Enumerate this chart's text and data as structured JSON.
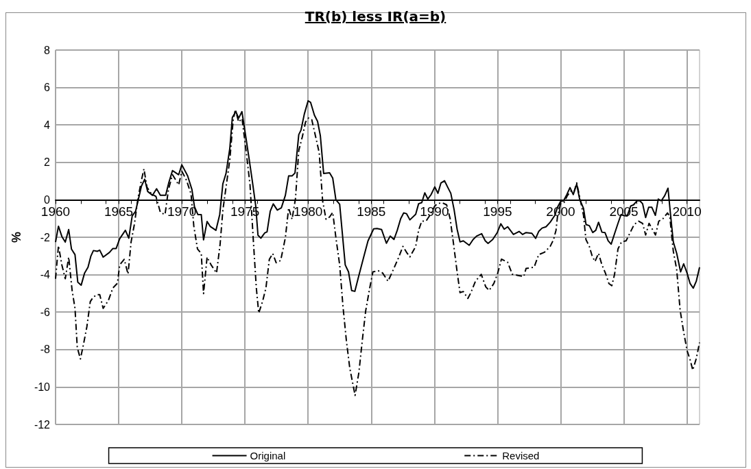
{
  "chart_data": {
    "type": "line",
    "title": "TR(b) less IR(a=b)",
    "ylabel": "%",
    "xlim": [
      1960,
      2011
    ],
    "xticks": [
      1960,
      1965,
      1970,
      1975,
      1980,
      1985,
      1990,
      1995,
      2000,
      2005,
      2010
    ],
    "ylim": [
      -12,
      8
    ],
    "yticks": [
      -12,
      -10,
      -8,
      -6,
      -4,
      -2,
      0,
      2,
      4,
      6,
      8
    ],
    "grid": true,
    "legend": "bottom",
    "marker": "none",
    "series": [
      {
        "name": "Original",
        "color": "#000000",
        "line_style": "solid",
        "x": [
          1960.0,
          1960.23,
          1960.5,
          1960.77,
          1961.04,
          1961.26,
          1961.54,
          1961.76,
          1962.03,
          1962.3,
          1962.57,
          1962.8,
          1963.0,
          1963.3,
          1963.5,
          1963.77,
          1964.27,
          1964.54,
          1964.8,
          1965.08,
          1965.53,
          1965.8,
          1966.07,
          1966.34,
          1966.8,
          1967.06,
          1967.29,
          1967.68,
          1968.0,
          1968.3,
          1968.72,
          1968.97,
          1969.26,
          1969.75,
          1970.0,
          1970.46,
          1970.8,
          1971.0,
          1971.27,
          1971.54,
          1971.72,
          1972.0,
          1972.26,
          1972.7,
          1973.0,
          1973.25,
          1973.5,
          1973.8,
          1974.0,
          1974.28,
          1974.5,
          1974.76,
          1975.04,
          1975.3,
          1975.6,
          1975.85,
          1976.03,
          1976.26,
          1976.57,
          1976.75,
          1977.0,
          1977.24,
          1977.56,
          1977.88,
          1978.2,
          1978.46,
          1978.73,
          1978.96,
          1979.26,
          1979.44,
          1979.7,
          1980.0,
          1980.2,
          1980.5,
          1980.75,
          1980.97,
          1981.23,
          1981.7,
          1981.95,
          1982.2,
          1982.5,
          1982.94,
          1983.2,
          1983.45,
          1983.7,
          1984.0,
          1984.38,
          1984.74,
          1985.19,
          1985.46,
          1985.82,
          1986.2,
          1986.5,
          1986.8,
          1987.06,
          1987.33,
          1987.57,
          1987.79,
          1988.06,
          1988.52,
          1988.75,
          1989.0,
          1989.24,
          1989.48,
          1989.74,
          1990.03,
          1990.28,
          1990.52,
          1990.8,
          1991.07,
          1991.3,
          1991.56,
          1991.8,
          1992.03,
          1992.29,
          1992.76,
          1993.07,
          1993.34,
          1993.74,
          1994.03,
          1994.25,
          1994.62,
          1994.98,
          1995.26,
          1995.53,
          1995.8,
          1996.26,
          1996.71,
          1996.99,
          1997.26,
          1997.72,
          1998.02,
          1998.26,
          1998.53,
          1998.84,
          1999.17,
          1999.54,
          1999.75,
          1999.99,
          2000.23,
          2000.49,
          2000.74,
          2001.0,
          2001.27,
          2001.5,
          2001.81,
          2002.01,
          2002.27,
          2002.54,
          2002.78,
          2003.0,
          2003.27,
          2003.51,
          2003.76,
          2004.0,
          2004.27,
          2004.54,
          2004.78,
          2005.04,
          2005.27,
          2005.55,
          2005.77,
          2006.06,
          2006.27,
          2006.49,
          2006.73,
          2006.97,
          2007.22,
          2007.5,
          2007.73,
          2007.97,
          2008.24,
          2008.5,
          2008.68,
          2008.92,
          2009.19,
          2009.5,
          2009.74,
          2010.01,
          2010.25,
          2010.5,
          2010.74,
          2011.0
        ],
        "values": [
          -2.26,
          -1.41,
          -1.96,
          -2.26,
          -1.59,
          -2.63,
          -2.93,
          -4.4,
          -4.56,
          -3.91,
          -3.6,
          -3.0,
          -2.71,
          -2.75,
          -2.69,
          -3.06,
          -2.81,
          -2.6,
          -2.6,
          -2.08,
          -1.63,
          -2.05,
          -0.86,
          -0.61,
          0.73,
          1.1,
          0.45,
          0.24,
          0.59,
          0.24,
          0.24,
          0.92,
          1.56,
          1.34,
          1.87,
          1.28,
          0.55,
          -0.37,
          -0.79,
          -0.79,
          -2.14,
          -1.16,
          -1.43,
          -1.63,
          -0.79,
          0.86,
          1.41,
          2.75,
          4.4,
          4.71,
          4.36,
          4.71,
          3.48,
          2.32,
          0.92,
          -0.31,
          -1.89,
          -2.05,
          -1.77,
          -1.71,
          -0.61,
          -0.22,
          -0.55,
          -0.43,
          0.24,
          1.28,
          1.28,
          1.43,
          3.48,
          3.73,
          4.58,
          5.29,
          5.2,
          4.52,
          4.19,
          3.42,
          1.41,
          1.44,
          1.16,
          0.0,
          -0.24,
          -3.48,
          -3.85,
          -4.85,
          -4.89,
          -4.1,
          -3.12,
          -2.2,
          -1.55,
          -1.53,
          -1.59,
          -2.32,
          -1.94,
          -2.12,
          -1.63,
          -1.01,
          -0.7,
          -0.74,
          -1.07,
          -0.77,
          -0.21,
          -0.15,
          0.37,
          0.04,
          0.28,
          0.69,
          0.35,
          0.9,
          1.02,
          0.65,
          0.35,
          -0.52,
          -1.57,
          -2.25,
          -2.19,
          -2.43,
          -2.12,
          -1.94,
          -1.81,
          -2.19,
          -2.33,
          -2.12,
          -1.75,
          -1.28,
          -1.57,
          -1.44,
          -1.85,
          -1.69,
          -1.85,
          -1.75,
          -1.79,
          -2.06,
          -1.69,
          -1.51,
          -1.44,
          -1.2,
          -0.83,
          -0.4,
          -0.09,
          -0.05,
          0.28,
          0.65,
          0.28,
          0.84,
          0.04,
          -0.46,
          -1.32,
          -1.38,
          -1.75,
          -1.63,
          -1.2,
          -1.73,
          -1.75,
          -2.19,
          -2.37,
          -1.81,
          -1.26,
          -0.79,
          -0.85,
          -0.86,
          -0.33,
          -0.27,
          -0.05,
          -0.05,
          -0.21,
          -0.95,
          -0.4,
          -0.4,
          -0.83,
          0.04,
          -0.05,
          0.22,
          0.62,
          -0.64,
          -2.25,
          -2.86,
          -3.85,
          -3.42,
          -3.91,
          -4.47,
          -4.72,
          -4.35,
          -3.6
        ]
      },
      {
        "name": "Revised",
        "color": "#000000",
        "line_style": "dashdot",
        "x": [
          1960.0,
          1960.23,
          1960.5,
          1960.77,
          1961.04,
          1961.31,
          1961.54,
          1961.72,
          1961.97,
          1962.2,
          1962.48,
          1962.75,
          1962.98,
          1963.28,
          1963.5,
          1963.77,
          1964.18,
          1964.54,
          1964.9,
          1965.08,
          1965.44,
          1965.74,
          1965.98,
          1966.25,
          1966.52,
          1966.8,
          1967.0,
          1967.24,
          1967.6,
          1967.95,
          1968.3,
          1968.67,
          1968.94,
          1969.26,
          1969.75,
          1970.0,
          1970.37,
          1970.73,
          1970.95,
          1971.24,
          1971.54,
          1971.72,
          1972.0,
          1972.32,
          1972.75,
          1973.03,
          1973.25,
          1973.5,
          1973.8,
          1974.06,
          1974.24,
          1974.5,
          1974.77,
          1975.13,
          1975.4,
          1975.67,
          1975.9,
          1976.09,
          1976.39,
          1976.66,
          1976.93,
          1977.2,
          1977.47,
          1977.83,
          1978.2,
          1978.46,
          1978.73,
          1979.0,
          1979.26,
          1979.54,
          1979.8,
          1980.04,
          1980.29,
          1980.6,
          1980.88,
          1981.15,
          1981.42,
          1981.7,
          1981.95,
          1982.2,
          1982.5,
          1982.76,
          1983.03,
          1983.3,
          1983.72,
          1984.02,
          1984.29,
          1984.56,
          1984.88,
          1985.13,
          1985.55,
          1985.9,
          1986.33,
          1986.79,
          1987.15,
          1987.51,
          1987.79,
          1988.06,
          1988.52,
          1988.75,
          1989.0,
          1989.34,
          1989.7,
          1990.03,
          1990.25,
          1990.61,
          1990.97,
          1991.25,
          1991.52,
          1991.8,
          1992.03,
          1992.29,
          1992.65,
          1992.89,
          1993.25,
          1993.71,
          1994.07,
          1994.34,
          1994.71,
          1995.02,
          1995.31,
          1995.8,
          1996.17,
          1996.62,
          1997.08,
          1997.26,
          1997.9,
          1998.26,
          1998.72,
          1999.17,
          1999.44,
          1999.63,
          1999.75,
          1999.99,
          2000.26,
          2000.53,
          2000.81,
          2001.05,
          2001.27,
          2001.54,
          2001.81,
          2002.0,
          2002.27,
          2002.49,
          2002.72,
          2003.0,
          2003.27,
          2003.54,
          2003.82,
          2004.05,
          2004.27,
          2004.54,
          2004.82,
          2005.18,
          2005.46,
          2005.82,
          2006.18,
          2006.49,
          2006.73,
          2007.0,
          2007.51,
          2007.77,
          2008.1,
          2008.46,
          2008.64,
          2008.92,
          2009.19,
          2009.46,
          2009.74,
          2010.01,
          2010.25,
          2010.46,
          2010.74,
          2011.0
        ],
        "values": [
          -4.22,
          -2.45,
          -3.48,
          -4.22,
          -3.06,
          -4.83,
          -5.8,
          -7.89,
          -8.5,
          -7.76,
          -6.78,
          -5.44,
          -5.2,
          -5.07,
          -5.07,
          -5.8,
          -5.38,
          -4.71,
          -4.46,
          -3.48,
          -3.18,
          -3.97,
          -2.26,
          -1.28,
          0.06,
          1.04,
          1.65,
          0.67,
          0.31,
          0.18,
          -0.67,
          -0.79,
          0.55,
          1.34,
          0.8,
          1.53,
          1.04,
          0.31,
          -1.41,
          -2.63,
          -2.87,
          -5.01,
          -3.06,
          -3.48,
          -3.91,
          -2.38,
          -0.55,
          0.67,
          2.14,
          4.22,
          4.83,
          4.16,
          4.34,
          2.38,
          0.8,
          -2.26,
          -4.71,
          -6.05,
          -5.44,
          -4.71,
          -3.18,
          -2.87,
          -3.36,
          -3.24,
          -2.02,
          -0.43,
          -1.04,
          0.06,
          2.63,
          3.36,
          4.16,
          4.37,
          4.28,
          3.36,
          2.51,
          -0.06,
          -1.04,
          -0.92,
          -0.67,
          -2.02,
          -3.48,
          -5.68,
          -7.52,
          -8.99,
          -10.45,
          -9.23,
          -7.52,
          -5.93,
          -4.71,
          -3.85,
          -3.79,
          -3.91,
          -4.35,
          -3.67,
          -3.11,
          -2.49,
          -2.8,
          -3.05,
          -2.49,
          -1.63,
          -1.14,
          -1.14,
          -0.77,
          -0.33,
          -0.21,
          -0.15,
          -0.27,
          -1.01,
          -2.37,
          -3.85,
          -4.96,
          -4.9,
          -5.27,
          -4.96,
          -4.35,
          -3.98,
          -4.65,
          -4.84,
          -4.47,
          -3.91,
          -3.17,
          -3.33,
          -3.98,
          -4.04,
          -4.1,
          -3.67,
          -3.6,
          -2.93,
          -2.8,
          -2.49,
          -2.12,
          -1.63,
          -0.89,
          -0.21,
          -0.15,
          0.22,
          0.47,
          0.41,
          0.9,
          0.04,
          -0.83,
          -2.12,
          -2.49,
          -2.99,
          -3.3,
          -2.86,
          -3.48,
          -3.91,
          -4.47,
          -4.59,
          -3.98,
          -2.62,
          -2.25,
          -2.19,
          -1.81,
          -1.32,
          -1.14,
          -1.26,
          -1.88,
          -1.26,
          -1.88,
          -1.14,
          -1.01,
          -0.7,
          -0.89,
          -2.74,
          -3.73,
          -5.89,
          -7.06,
          -8.05,
          -8.54,
          -9.1,
          -8.48,
          -7.62
        ]
      }
    ]
  }
}
